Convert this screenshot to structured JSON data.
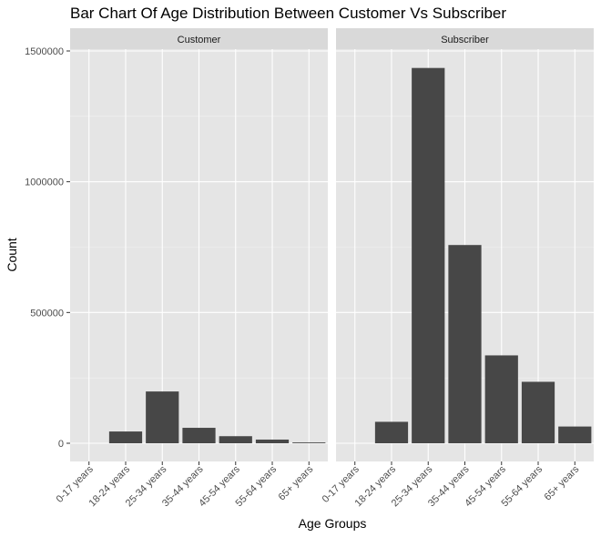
{
  "chart_data": {
    "type": "bar",
    "title": "Bar Chart Of Age Distribution Between Customer Vs Subscriber",
    "xlabel": "Age Groups",
    "ylabel": "Count",
    "ylim": [
      0,
      1500000
    ],
    "yticks": [
      0,
      500000,
      1000000,
      1500000
    ],
    "ytick_labels": [
      "0",
      "500000",
      "1000000",
      "1500000"
    ],
    "categories": [
      "0-17 years",
      "18-24 years",
      "25-34 years",
      "35-44 years",
      "45-54 years",
      "55-64 years",
      "65+ years"
    ],
    "grid": true,
    "bar_color": "#474747",
    "panel_background": "#e5e5e5",
    "strip_background": "#d9d9d9",
    "panels": [
      {
        "name": "Customer",
        "values": [
          0,
          45000,
          198000,
          59000,
          27000,
          14000,
          3000
        ]
      },
      {
        "name": "Subscriber",
        "values": [
          0,
          82000,
          1435000,
          758000,
          336000,
          235000,
          64000
        ]
      }
    ]
  }
}
